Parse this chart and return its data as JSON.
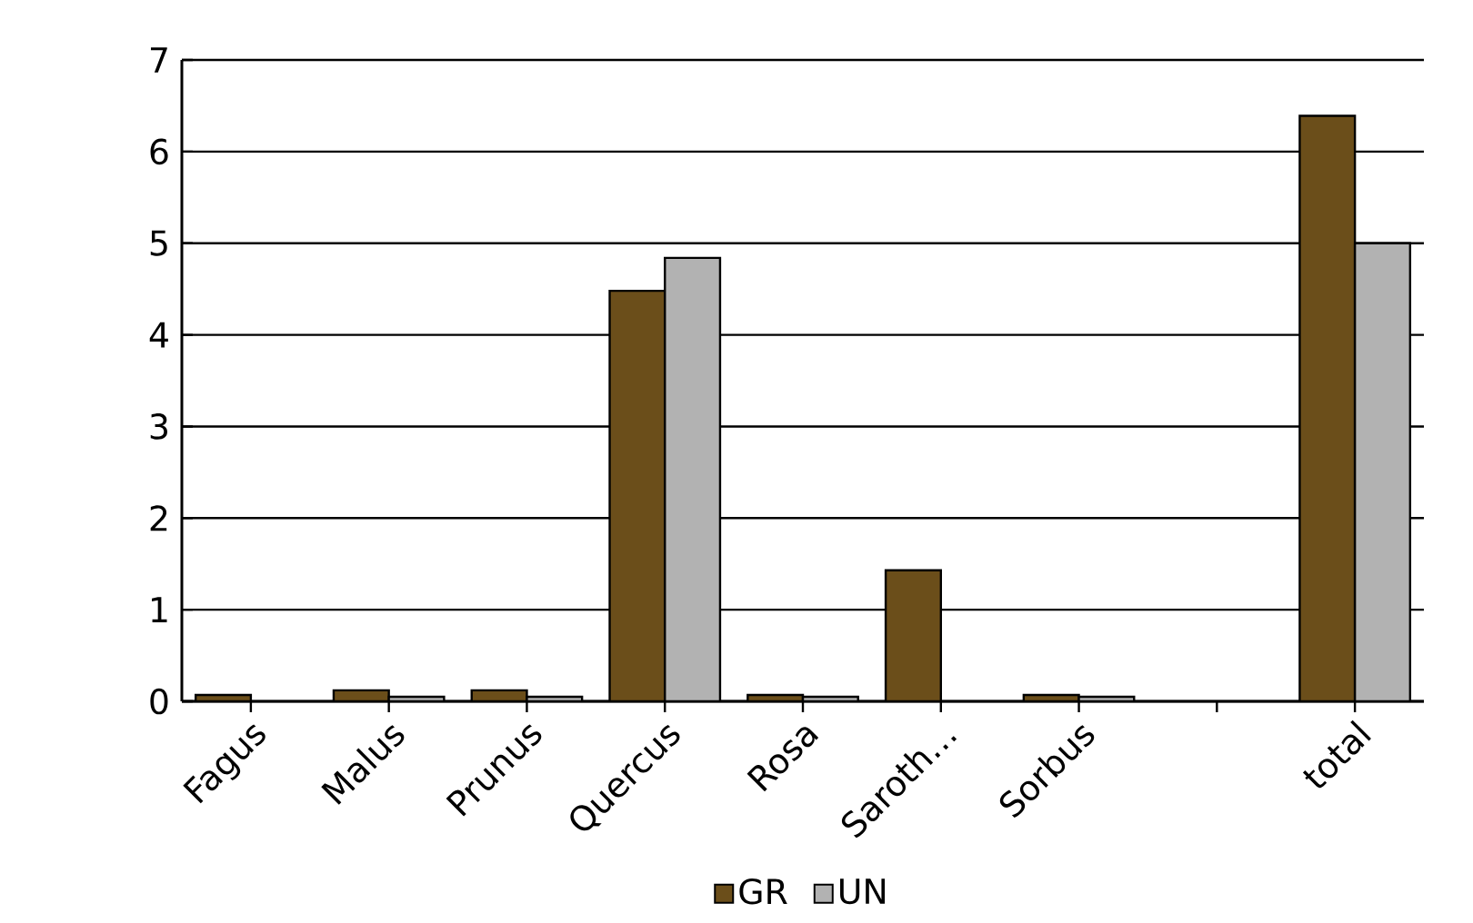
{
  "chart_data": {
    "type": "bar",
    "categories": [
      "Fagus",
      "Malus",
      "Prunus",
      "Quercus",
      "Rosa",
      "Saroth…",
      "Sorbus",
      null,
      "total"
    ],
    "series": [
      {
        "name": "GR",
        "color": "#6b4e1a",
        "values": [
          0.07,
          0.12,
          0.12,
          4.48,
          0.07,
          1.43,
          0.07,
          null,
          6.39
        ]
      },
      {
        "name": "UN",
        "color": "#b2b2b2",
        "values": [
          null,
          0.05,
          0.05,
          4.84,
          0.05,
          null,
          0.05,
          null,
          5.0
        ]
      }
    ],
    "ylim": [
      0,
      7
    ],
    "yticks": [
      0,
      1,
      2,
      3,
      4,
      5,
      6,
      7
    ],
    "grid": "y",
    "legend": "bottom"
  }
}
